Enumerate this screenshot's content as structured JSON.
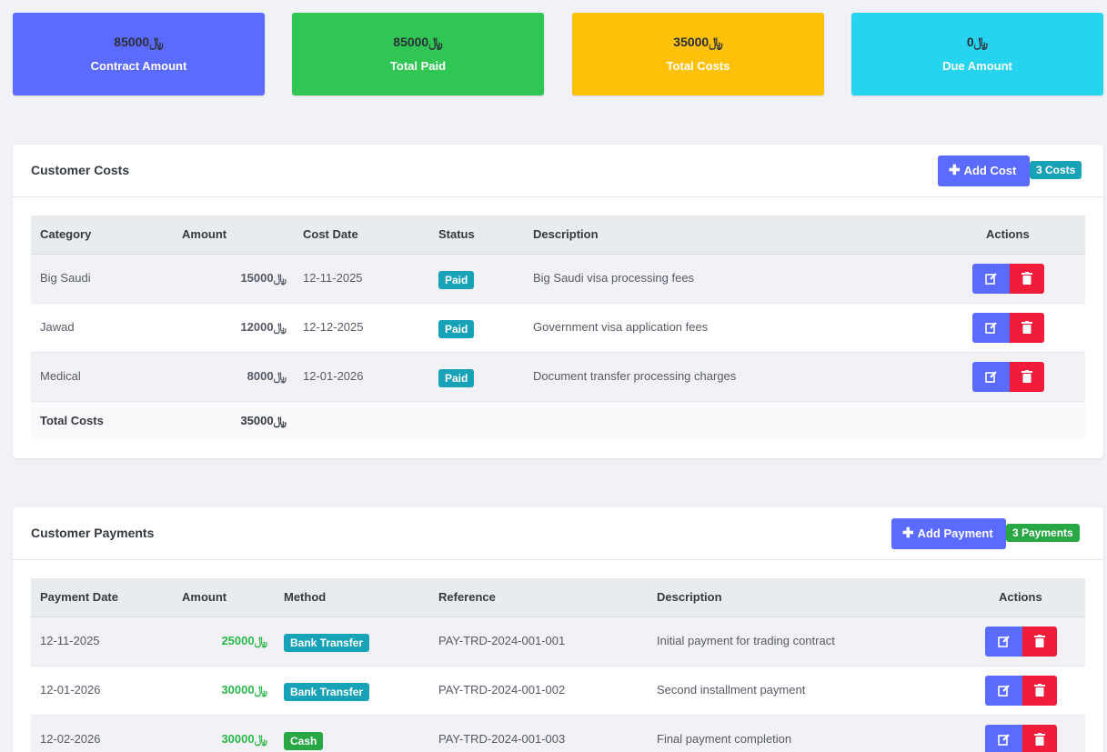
{
  "stats": [
    {
      "amount": "85000﷼",
      "label": "Contract Amount",
      "color": "#5c6bff"
    },
    {
      "amount": "85000﷼",
      "label": "Total Paid",
      "color": "#30c654"
    },
    {
      "amount": "35000﷼",
      "label": "Total Costs",
      "color": "#ffc107"
    },
    {
      "amount": "0﷼",
      "label": "Due Amount",
      "color": "#27d4f0"
    }
  ],
  "costs": {
    "title": "Customer Costs",
    "add_label": "Add Cost",
    "count_label": "3 Costs",
    "headers": [
      "Category",
      "Amount",
      "Cost Date",
      "Status",
      "Description",
      "Actions"
    ],
    "rows": [
      {
        "category": "Big Saudi",
        "amount": "15000﷼",
        "date": "12-11-2025",
        "status": "Paid",
        "description": "Big Saudi visa processing fees"
      },
      {
        "category": "Jawad",
        "amount": "12000﷼",
        "date": "12-12-2025",
        "status": "Paid",
        "description": "Government visa application fees"
      },
      {
        "category": "Medical",
        "amount": "8000﷼",
        "date": "12-01-2026",
        "status": "Paid",
        "description": "Document transfer processing charges"
      }
    ],
    "total_label": "Total Costs",
    "total_amount": "35000﷼"
  },
  "payments": {
    "title": "Customer Payments",
    "add_label": "Add Payment",
    "count_label": "3 Payments",
    "headers": [
      "Payment Date",
      "Amount",
      "Method",
      "Reference",
      "Description",
      "Actions"
    ],
    "rows": [
      {
        "date": "12-11-2025",
        "amount": "25000﷼",
        "method": "Bank Transfer",
        "reference": "PAY-TRD-2024-001-001",
        "description": "Initial payment for trading contract"
      },
      {
        "date": "12-01-2026",
        "amount": "30000﷼",
        "method": "Bank Transfer",
        "reference": "PAY-TRD-2024-001-002",
        "description": "Second installment payment"
      },
      {
        "date": "12-02-2026",
        "amount": "30000﷼",
        "method": "Cash",
        "reference": "PAY-TRD-2024-001-003",
        "description": "Final payment completion"
      }
    ]
  },
  "icons": {
    "add": "plus-icon",
    "edit": "edit-icon",
    "delete": "trash-icon"
  }
}
